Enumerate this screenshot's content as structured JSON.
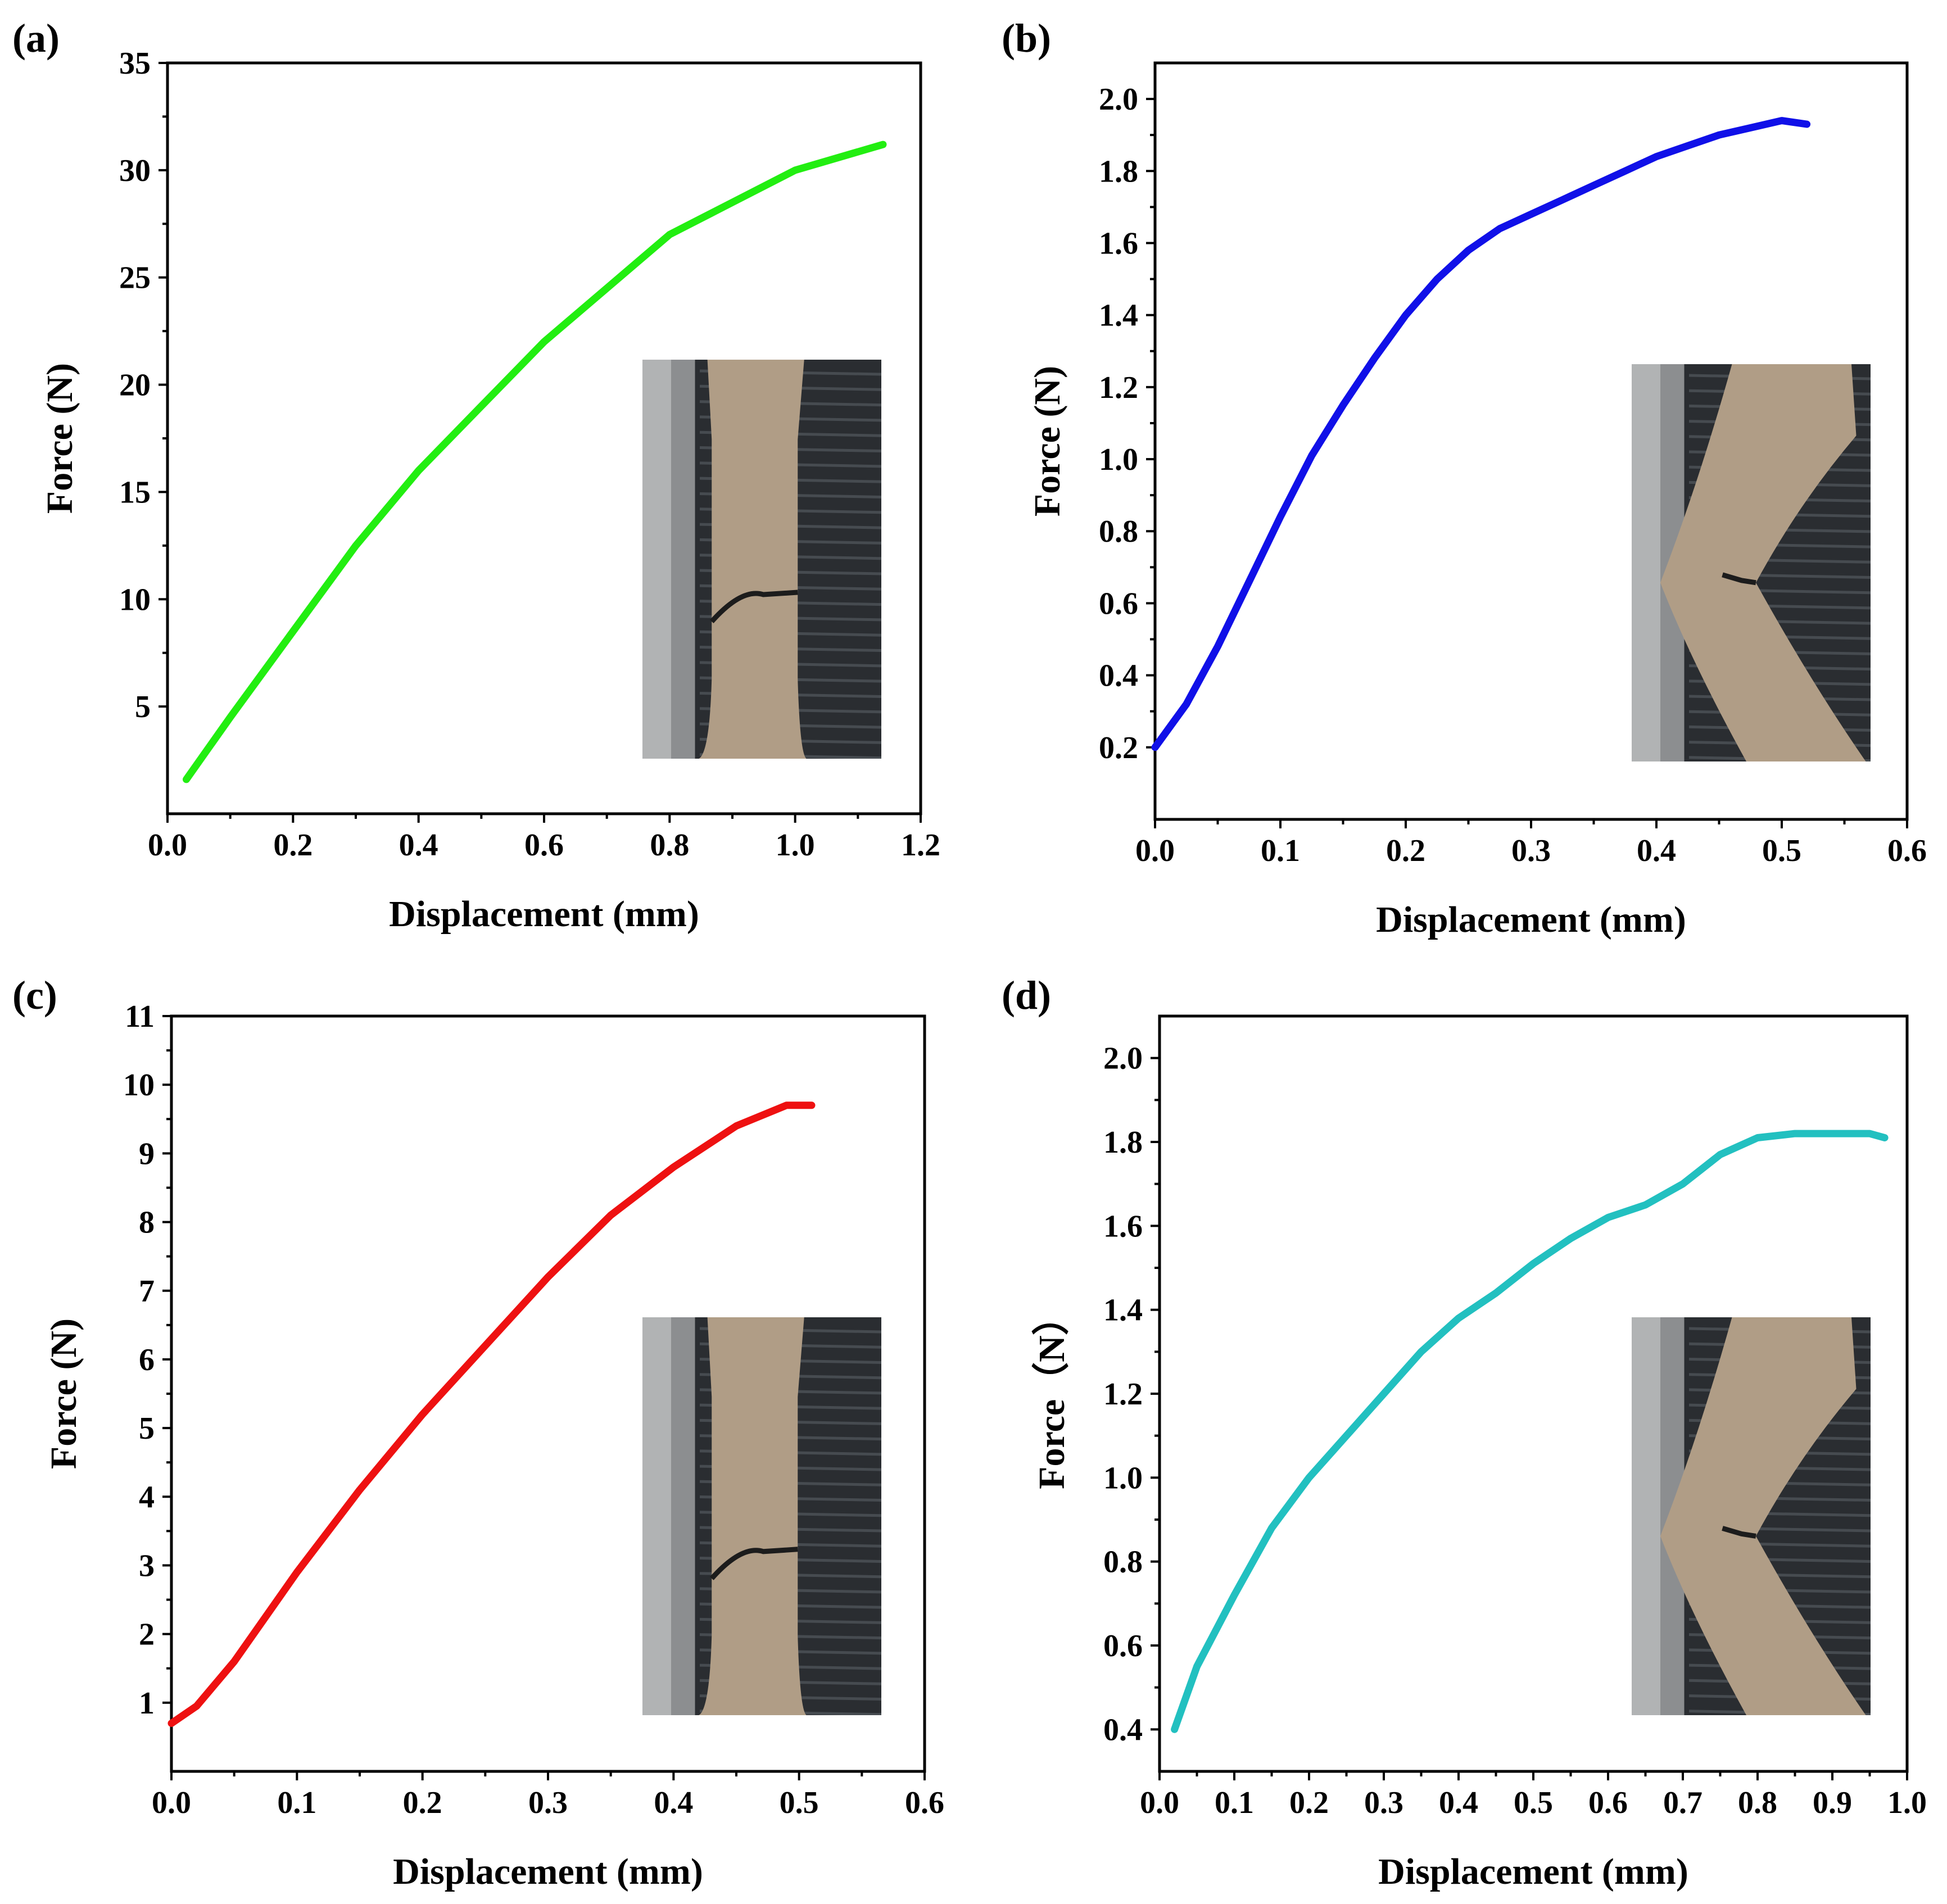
{
  "chart_data": [
    {
      "type": "line",
      "panel_label": "(a)",
      "xlabel": "Displacement (mm)",
      "ylabel": "Force (N)",
      "xlim": [
        0.0,
        1.2
      ],
      "ylim": [
        0,
        35
      ],
      "xticks": [
        0.0,
        0.2,
        0.4,
        0.6,
        0.8,
        1.0,
        1.2
      ],
      "yticks": [
        5,
        10,
        15,
        20,
        25,
        30,
        35
      ],
      "xtick_labels": [
        "0.0",
        "0.2",
        "0.4",
        "0.6",
        "0.8",
        "1.0",
        "1.2"
      ],
      "ytick_labels": [
        "5",
        "10",
        "15",
        "20",
        "25",
        "30",
        "35"
      ],
      "color": "#22ee11",
      "inset": "fractured-straight-specimen",
      "series": [
        {
          "name": "(a)",
          "x": [
            0.03,
            0.1,
            0.2,
            0.3,
            0.4,
            0.5,
            0.6,
            0.7,
            0.8,
            0.9,
            1.0,
            1.14
          ],
          "y": [
            1.6,
            4.5,
            8.5,
            12.5,
            16.0,
            19.0,
            22.0,
            24.5,
            27.0,
            28.5,
            30.0,
            31.2
          ]
        }
      ]
    },
    {
      "type": "line",
      "panel_label": "(b)",
      "xlabel": "Displacement (mm)",
      "ylabel": "Force (N)",
      "xlim": [
        0.0,
        0.6
      ],
      "ylim": [
        0.0,
        2.1
      ],
      "xticks": [
        0.0,
        0.1,
        0.2,
        0.3,
        0.4,
        0.5,
        0.6
      ],
      "yticks": [
        0.2,
        0.4,
        0.6,
        0.8,
        1.0,
        1.2,
        1.4,
        1.6,
        1.8,
        2.0
      ],
      "xtick_labels": [
        "0.0",
        "0.1",
        "0.2",
        "0.3",
        "0.4",
        "0.5",
        "0.6"
      ],
      "ytick_labels": [
        "0.2",
        "0.4",
        "0.6",
        "0.8",
        "1.0",
        "1.2",
        "1.4",
        "1.6",
        "1.8",
        "2.0"
      ],
      "color": "#1010e8",
      "inset": "fractured-notched-specimen",
      "series": [
        {
          "name": "(b)",
          "x": [
            0.0,
            0.025,
            0.05,
            0.075,
            0.1,
            0.125,
            0.15,
            0.175,
            0.2,
            0.225,
            0.25,
            0.275,
            0.3,
            0.325,
            0.35,
            0.375,
            0.4,
            0.425,
            0.45,
            0.475,
            0.5,
            0.52
          ],
          "y": [
            0.2,
            0.32,
            0.48,
            0.66,
            0.84,
            1.01,
            1.15,
            1.28,
            1.4,
            1.5,
            1.58,
            1.64,
            1.68,
            1.72,
            1.76,
            1.8,
            1.84,
            1.87,
            1.9,
            1.92,
            1.94,
            1.93
          ]
        }
      ]
    },
    {
      "type": "line",
      "panel_label": "(c)",
      "xlabel": "Displacement (mm)",
      "ylabel": "Force (N)",
      "xlim": [
        0.0,
        0.6
      ],
      "ylim": [
        0,
        11
      ],
      "xticks": [
        0.0,
        0.1,
        0.2,
        0.3,
        0.4,
        0.5,
        0.6
      ],
      "yticks": [
        1,
        2,
        3,
        4,
        5,
        6,
        7,
        8,
        9,
        10,
        11
      ],
      "xtick_labels": [
        "0.0",
        "0.1",
        "0.2",
        "0.3",
        "0.4",
        "0.5",
        "0.6"
      ],
      "ytick_labels": [
        "1",
        "2",
        "3",
        "4",
        "5",
        "6",
        "7",
        "8",
        "9",
        "10",
        "11"
      ],
      "color": "#ee1111",
      "inset": "fractured-straight-specimen",
      "series": [
        {
          "name": "(c)",
          "x": [
            0.0,
            0.02,
            0.05,
            0.1,
            0.15,
            0.2,
            0.25,
            0.3,
            0.35,
            0.4,
            0.45,
            0.49,
            0.51
          ],
          "y": [
            0.7,
            0.95,
            1.6,
            2.9,
            4.1,
            5.2,
            6.2,
            7.2,
            8.1,
            8.8,
            9.4,
            9.7,
            9.7
          ]
        }
      ]
    },
    {
      "type": "line",
      "panel_label": "(d)",
      "xlabel": "Displacement (mm)",
      "ylabel": "Force（N）",
      "xlim": [
        0.0,
        1.0
      ],
      "ylim": [
        0.3,
        2.1
      ],
      "xticks": [
        0.0,
        0.1,
        0.2,
        0.3,
        0.4,
        0.5,
        0.6,
        0.7,
        0.8,
        0.9,
        1.0
      ],
      "yticks": [
        0.4,
        0.6,
        0.8,
        1.0,
        1.2,
        1.4,
        1.6,
        1.8,
        2.0
      ],
      "xtick_labels": [
        "0.0",
        "0.1",
        "0.2",
        "0.3",
        "0.4",
        "0.5",
        "0.6",
        "0.7",
        "0.8",
        "0.9",
        "1.0"
      ],
      "ytick_labels": [
        "0.4",
        "0.6",
        "0.8",
        "1.0",
        "1.2",
        "1.4",
        "1.6",
        "1.8",
        "2.0"
      ],
      "color": "#22c0c0",
      "inset": "fractured-notched-specimen",
      "series": [
        {
          "name": "(d)",
          "x": [
            0.02,
            0.05,
            0.1,
            0.15,
            0.2,
            0.25,
            0.3,
            0.35,
            0.4,
            0.45,
            0.5,
            0.55,
            0.6,
            0.65,
            0.7,
            0.75,
            0.8,
            0.85,
            0.9,
            0.95,
            0.97
          ],
          "y": [
            0.4,
            0.55,
            0.72,
            0.88,
            1.0,
            1.1,
            1.2,
            1.3,
            1.38,
            1.44,
            1.51,
            1.57,
            1.62,
            1.65,
            1.7,
            1.77,
            1.81,
            1.82,
            1.82,
            1.82,
            1.81
          ]
        }
      ]
    }
  ]
}
